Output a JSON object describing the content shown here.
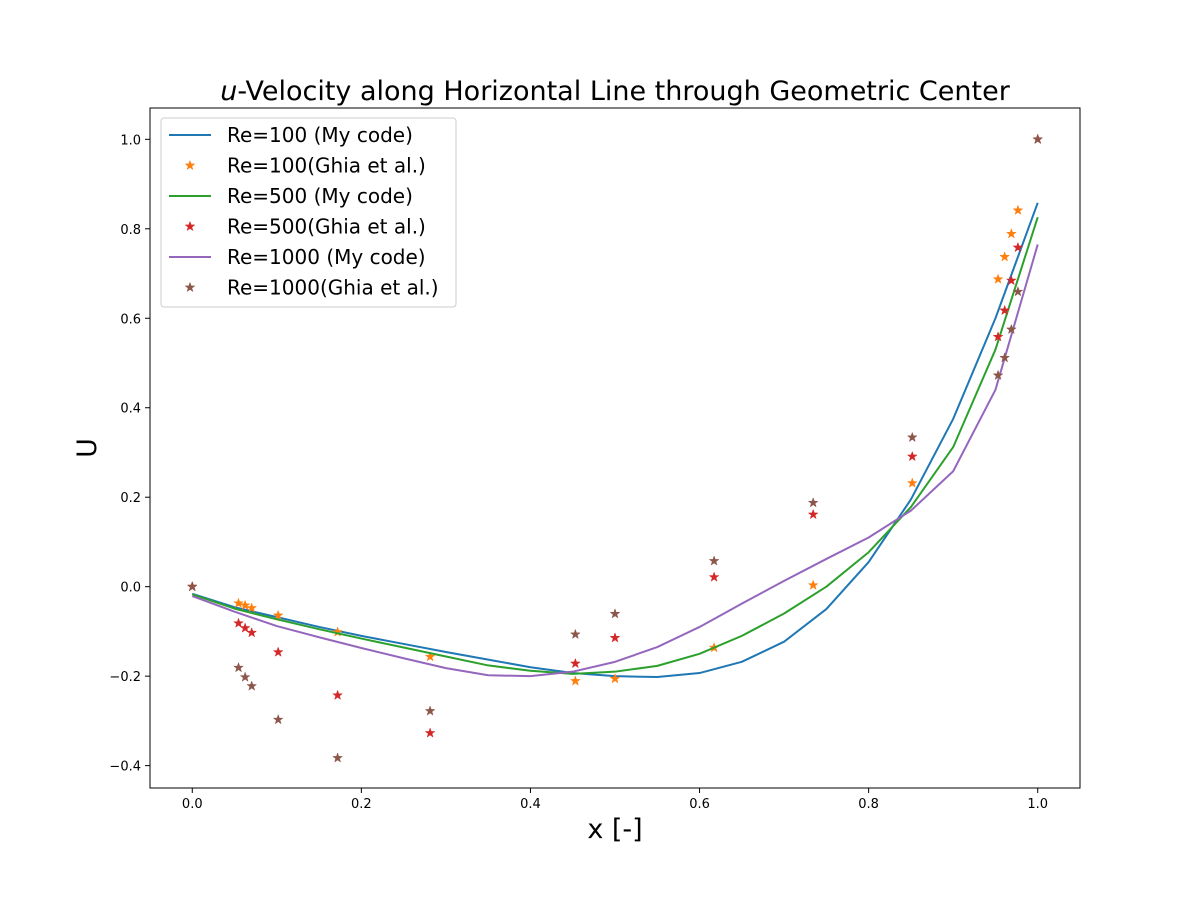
{
  "chart_data": {
    "type": "line",
    "title_italic": "u",
    "title_rest": "-Velocity along Horizontal Line through Geometric Center",
    "xlabel": "x [-]",
    "ylabel": "U",
    "xlim": [
      -0.05,
      1.05
    ],
    "ylim": [
      -0.45,
      1.07
    ],
    "xticks": [
      0.0,
      0.2,
      0.4,
      0.6,
      0.8,
      1.0
    ],
    "xtick_labels": [
      "0.0",
      "0.2",
      "0.4",
      "0.6",
      "0.8",
      "1.0"
    ],
    "yticks": [
      -0.4,
      -0.2,
      0.0,
      0.2,
      0.4,
      0.6,
      0.8,
      1.0
    ],
    "ytick_labels": [
      "−0.4",
      "−0.2",
      "0.0",
      "0.2",
      "0.4",
      "0.6",
      "0.8",
      "1.0"
    ],
    "grid": false,
    "legend_position": "top-left",
    "series": [
      {
        "name": "Re=100 (My code)",
        "kind": "line",
        "color": "#1f77b4",
        "x": [
          0.0,
          0.05,
          0.1,
          0.15,
          0.2,
          0.25,
          0.3,
          0.35,
          0.4,
          0.45,
          0.5,
          0.55,
          0.6,
          0.65,
          0.7,
          0.75,
          0.8,
          0.85,
          0.9,
          0.95,
          1.0
        ],
        "y": [
          -0.016,
          -0.046,
          -0.068,
          -0.09,
          -0.11,
          -0.128,
          -0.146,
          -0.163,
          -0.18,
          -0.193,
          -0.2,
          -0.202,
          -0.193,
          -0.168,
          -0.123,
          -0.05,
          0.055,
          0.195,
          0.375,
          0.6,
          0.858
        ]
      },
      {
        "name": "Re=100(Ghia et al.)",
        "kind": "scatter",
        "color": "#ff7f0e",
        "x": [
          0.0,
          0.0547,
          0.0625,
          0.0703,
          0.1016,
          0.1719,
          0.2813,
          0.4531,
          0.5,
          0.6172,
          0.7344,
          0.8516,
          0.9531,
          0.9609,
          0.9688,
          0.9766,
          1.0
        ],
        "y": [
          0.0,
          -0.0372,
          -0.0419,
          -0.0478,
          -0.0643,
          -0.1015,
          -0.1566,
          -0.2109,
          -0.2058,
          -0.1364,
          0.0033,
          0.2315,
          0.6872,
          0.7372,
          0.7887,
          0.8412,
          1.0
        ]
      },
      {
        "name": "Re=500 (My code)",
        "kind": "line",
        "color": "#2ca02c",
        "x": [
          0.0,
          0.05,
          0.1,
          0.15,
          0.2,
          0.25,
          0.3,
          0.35,
          0.4,
          0.45,
          0.5,
          0.55,
          0.6,
          0.65,
          0.7,
          0.75,
          0.8,
          0.85,
          0.9,
          0.95,
          1.0
        ],
        "y": [
          -0.017,
          -0.049,
          -0.073,
          -0.095,
          -0.116,
          -0.136,
          -0.156,
          -0.176,
          -0.188,
          -0.195,
          -0.19,
          -0.177,
          -0.15,
          -0.11,
          -0.06,
          0.0,
          0.077,
          0.178,
          0.312,
          0.53,
          0.826
        ]
      },
      {
        "name": "Re=500(Ghia et al.)",
        "kind": "scatter",
        "color": "#d62728",
        "x": [
          0.0,
          0.0547,
          0.0625,
          0.0703,
          0.1016,
          0.1719,
          0.2813,
          0.4531,
          0.5,
          0.6172,
          0.7344,
          0.8516,
          0.9531,
          0.9609,
          0.9688,
          0.9766,
          1.0
        ],
        "y": [
          0.0,
          -0.0817,
          -0.0926,
          -0.1029,
          -0.1464,
          -0.2428,
          -0.3272,
          -0.1718,
          -0.1145,
          0.0213,
          0.1613,
          0.2909,
          0.5584,
          0.6174,
          0.6842,
          0.7581,
          1.0
        ]
      },
      {
        "name": "Re=1000 (My code)",
        "kind": "line",
        "color": "#9467bd",
        "x": [
          0.0,
          0.05,
          0.1,
          0.15,
          0.2,
          0.25,
          0.3,
          0.35,
          0.4,
          0.45,
          0.5,
          0.55,
          0.6,
          0.65,
          0.7,
          0.75,
          0.8,
          0.85,
          0.9,
          0.95,
          1.0
        ],
        "y": [
          -0.021,
          -0.056,
          -0.088,
          -0.113,
          -0.137,
          -0.16,
          -0.182,
          -0.198,
          -0.2,
          -0.19,
          -0.168,
          -0.135,
          -0.09,
          -0.038,
          0.013,
          0.062,
          0.11,
          0.17,
          0.258,
          0.44,
          0.765
        ]
      },
      {
        "name": "Re=1000(Ghia et al.)",
        "kind": "scatter",
        "color": "#8c564b",
        "x": [
          0.0,
          0.0547,
          0.0625,
          0.0703,
          0.1016,
          0.1719,
          0.2813,
          0.4531,
          0.5,
          0.6172,
          0.7344,
          0.8516,
          0.9531,
          0.9609,
          0.9688,
          0.9766,
          1.0
        ],
        "y": [
          0.0,
          -0.1811,
          -0.2023,
          -0.2222,
          -0.2973,
          -0.3829,
          -0.278,
          -0.1067,
          -0.0608,
          0.0574,
          0.1875,
          0.3337,
          0.4723,
          0.5116,
          0.5749,
          0.6593,
          1.0
        ]
      }
    ]
  }
}
